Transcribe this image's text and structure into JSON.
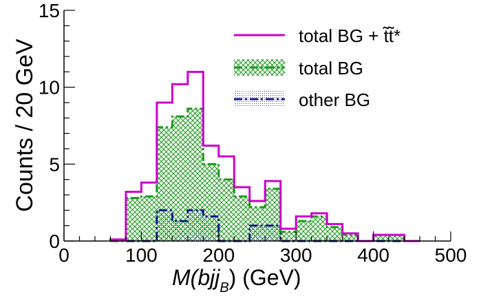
{
  "chart_data": {
    "type": "histogram",
    "xlabel": "M(bjj_B)  (GeV)",
    "xlabel_main": "M(bjj",
    "xlabel_sub": "B",
    "xlabel_tail": ")  (GeV)",
    "ylabel": "Counts / 20 GeV",
    "xlim": [
      0,
      500
    ],
    "ylim": [
      0,
      15
    ],
    "x_ticks": [
      0,
      100,
      200,
      300,
      400,
      500
    ],
    "y_ticks": [
      0,
      5,
      10,
      15
    ],
    "x_minor_step": 20,
    "y_minor_step": 1,
    "bin_edges": [
      60,
      80,
      100,
      120,
      140,
      160,
      180,
      200,
      220,
      240,
      260,
      280,
      300,
      320,
      340,
      360,
      380,
      400,
      420,
      440,
      460
    ],
    "series": [
      {
        "name": "total BG + t̃t̃*",
        "key": "total_plus_signal",
        "values": [
          0.1,
          3.2,
          3.8,
          9.0,
          10.2,
          11.0,
          6.2,
          5.5,
          3.5,
          2.6,
          3.9,
          0.8,
          1.6,
          1.8,
          1.1,
          0.5,
          0.0,
          0.4,
          0.4,
          0.0
        ],
        "color": "#cc00cc",
        "style": "solid"
      },
      {
        "name": "total BG",
        "key": "total_bg",
        "values": [
          0.0,
          2.8,
          2.9,
          7.4,
          8.1,
          8.6,
          5.0,
          4.0,
          2.9,
          2.2,
          3.4,
          0.6,
          1.3,
          1.6,
          0.9,
          0.4,
          0.0,
          0.4,
          0.4,
          0.0
        ],
        "color": "#1a9a1a",
        "style": "dashdot",
        "fill": "crosshatch"
      },
      {
        "name": "other BG",
        "key": "other_bg",
        "values": [
          0.0,
          0.0,
          0.0,
          2.0,
          1.3,
          2.0,
          1.6,
          0.0,
          0.0,
          1.0,
          1.0,
          0.0,
          0.0,
          0.0,
          0.0,
          0.0,
          0.0,
          0.0,
          0.0,
          0.0
        ],
        "color": "#0a1a8c",
        "style": "dashdot",
        "fill": "dots"
      }
    ],
    "legend_position": "top-right"
  }
}
